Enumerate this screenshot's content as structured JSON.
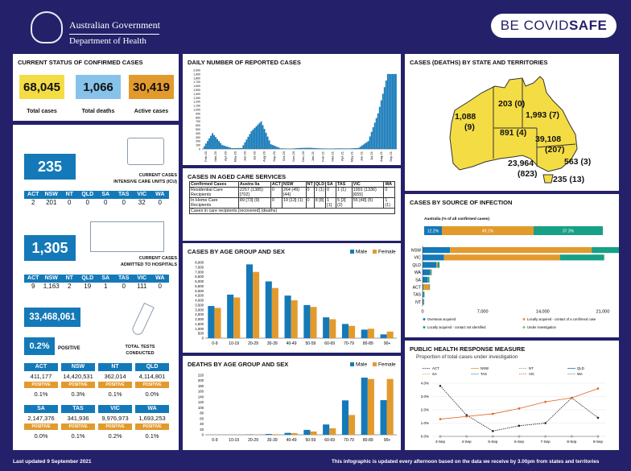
{
  "header": {
    "gov1": "Australian Government",
    "gov2": "Department of Health",
    "logo": "BE COVID",
    "logo_bold": "SAFE"
  },
  "status": {
    "title": "CURRENT STATUS OF CONFIRMED CASES",
    "total_cases": "68,045",
    "total_cases_label": "Total cases",
    "total_deaths": "1,066",
    "total_deaths_label": "Total deaths",
    "active_cases": "30,419",
    "active_cases_label": "Active cases"
  },
  "icu": {
    "value": "235",
    "label1": "CURRENT CASES",
    "label2": "INTENSIVE CARE UNITS (ICU)",
    "states": [
      "ACT",
      "NSW",
      "NT",
      "QLD",
      "SA",
      "TAS",
      "VIC",
      "WA"
    ],
    "values": [
      "2",
      "201",
      "0",
      "0",
      "0",
      "0",
      "32",
      "0"
    ]
  },
  "hospital": {
    "value": "1,305",
    "label1": "CURRENT CASES",
    "label2": "ADMITTED TO HOSPITALS",
    "states": [
      "ACT",
      "NSW",
      "NT",
      "QLD",
      "SA",
      "TAS",
      "VIC",
      "WA"
    ],
    "values": [
      "9",
      "1,163",
      "2",
      "19",
      "1",
      "0",
      "111",
      "0"
    ]
  },
  "tests": {
    "value": "33,468,061",
    "positive_pct": "0.2%",
    "positive_word": "POSITIVE",
    "label1": "TOTAL TESTS",
    "label2": "CONDUCTED",
    "rows": [
      {
        "states": [
          "ACT",
          "NSW",
          "NT",
          "QLD"
        ],
        "counts": [
          "411,177",
          "14,420,531",
          "362,014",
          "4,114,801"
        ],
        "pcts": [
          "0.1%",
          "0.3%",
          "0.1%",
          "0.0%"
        ]
      },
      {
        "states": [
          "SA",
          "TAS",
          "VIC",
          "WA"
        ],
        "counts": [
          "2,147,376",
          "341,936",
          "9,976,973",
          "1,693,253"
        ],
        "pcts": [
          "0.0%",
          "0.1%",
          "0.2%",
          "0.1%"
        ]
      }
    ],
    "pos_label": "POSITIVE"
  },
  "daily": {
    "title": "DAILY NUMBER OF REPORTED CASES",
    "yticks": [
      "0",
      "100",
      "200",
      "300",
      "400",
      "500",
      "600",
      "700",
      "800",
      "900",
      "1,000",
      "1,100",
      "1,200",
      "1,300",
      "1,400",
      "1,500",
      "1,600",
      "1,700",
      "1,800",
      "1,900",
      "2,000"
    ],
    "months": [
      "Feb-20",
      "Mar-20",
      "Apr-20",
      "May-20",
      "Jun-20",
      "Jul-20",
      "Aug-20",
      "Sep-20",
      "Oct-20",
      "Nov-20",
      "Dec-20",
      "Jan-21",
      "Feb-21",
      "Mar-21",
      "Apr-21",
      "May-21",
      "Jun-21",
      "Jul-21",
      "Aug-21",
      "Sep-21"
    ],
    "monthly_peak": [
      5,
      400,
      100,
      20,
      25,
      450,
      700,
      120,
      15,
      8,
      25,
      30,
      15,
      10,
      15,
      12,
      25,
      200,
      900,
      1900
    ]
  },
  "aged": {
    "title": "CASES IN AGED CARE SERVICES",
    "head": [
      "Confirmed Cases",
      "Austra lia",
      "ACT",
      "NSW",
      "NT",
      "QLD",
      "SA",
      "TAS",
      "VIC",
      "WA"
    ],
    "rows": [
      [
        "Residential Care Recipients",
        "2257 (1385) [702]",
        "0",
        "264 (49) [44]",
        "0",
        "1 (1)",
        "0",
        "1 (1)",
        "1991 (1336) [655]",
        "0"
      ],
      [
        "In Home Care Recipients",
        "89 [73] (9)",
        "0",
        "19 [13] (1)",
        "0",
        "8 [8]",
        "1 [1]",
        "5 [3] (2)",
        "55 [48] (5)",
        "1 (1)"
      ]
    ],
    "note": "Cases in care recipients [recovered] (deaths)"
  },
  "age_sex": {
    "title": "CASES BY AGE GROUP AND SEX",
    "legend_male": "Male",
    "legend_female": "Female",
    "yticks": [
      "0",
      "500",
      "1,000",
      "1,500",
      "2,000",
      "2,500",
      "3,000",
      "3,500",
      "4,000",
      "4,500",
      "5,000",
      "5,500",
      "6,000",
      "6,500",
      "7,000",
      "7,500",
      "8,000"
    ]
  },
  "deaths_age": {
    "title": "DEATHS BY AGE GROUP AND SEX",
    "legend_male": "Male",
    "legend_female": "Female",
    "yticks": [
      "0",
      "20",
      "40",
      "60",
      "80",
      "100",
      "120",
      "140",
      "160",
      "180",
      "200",
      "220"
    ]
  },
  "state_map": {
    "title": "CASES (DEATHS) BY STATE AND TERRITORIES",
    "labels": [
      {
        "a": "1,088",
        "b": "(9)"
      },
      {
        "a": "203 (0)",
        "b": ""
      },
      {
        "a": "1,993 (7)",
        "b": ""
      },
      {
        "a": "891 (4)",
        "b": ""
      },
      {
        "a": "39,108",
        "b": "(207)"
      },
      {
        "a": "563 (3)",
        "b": ""
      },
      {
        "a": "23,964",
        "b": "(823)"
      },
      {
        "a": "235 (13)",
        "b": ""
      }
    ]
  },
  "source": {
    "title": "CASES BY SOURCE OF INFECTION",
    "sub": "Australia (% of all confirmed cases)",
    "seg_labels": [
      "12.2%",
      "49.1%",
      "37.3%"
    ],
    "xticks": [
      "0",
      "7,000",
      "14,000",
      "21,000"
    ],
    "legend": [
      "Overseas acquired",
      "Locally acquired - contact of a confirmed case",
      "Locally acquired - contact not identified",
      "Under investigation"
    ]
  },
  "phr": {
    "title": "PUBLIC HEALTH RESPONSE MEASURE",
    "sub": "Proportion of total cases under investigation",
    "legend": [
      "ACT",
      "NSW",
      "NT",
      "QLD",
      "SA",
      "TAS",
      "VIC",
      "WA"
    ],
    "yticks": [
      "0.0%",
      "1.0%",
      "2.0%",
      "3.0%",
      "4.0%"
    ]
  },
  "footer": {
    "left": "Last updated 9 September 2021",
    "right": "This infographic is updated every afternoon based on the data we receive by 3.00pm from states and territories"
  },
  "chart_data": [
    {
      "type": "bar",
      "title": "CASES BY AGE GROUP AND SEX",
      "categories": [
        "0-9",
        "10-19",
        "20-29",
        "30-39",
        "40-49",
        "50-59",
        "60-69",
        "70-79",
        "80-89",
        "90+"
      ],
      "series": [
        {
          "name": "Male",
          "values": [
            3400,
            4600,
            7800,
            6000,
            4500,
            3500,
            2200,
            1500,
            900,
            400
          ]
        },
        {
          "name": "Female",
          "values": [
            3200,
            4300,
            7000,
            5300,
            4000,
            3300,
            2000,
            1300,
            1000,
            700
          ]
        }
      ],
      "ylim": [
        0,
        8000
      ],
      "legend": "top-right"
    },
    {
      "type": "bar",
      "title": "DEATHS BY AGE GROUP AND SEX",
      "categories": [
        "0-9",
        "10-19",
        "20-29",
        "30-39",
        "40-49",
        "50-59",
        "60-69",
        "70-79",
        "80-89",
        "90+"
      ],
      "series": [
        {
          "name": "Male",
          "values": [
            0,
            0,
            1,
            3,
            7,
            18,
            38,
            127,
            211,
            128
          ]
        },
        {
          "name": "Female",
          "values": [
            0,
            1,
            1,
            2,
            6,
            12,
            24,
            73,
            206,
            206
          ]
        }
      ],
      "ylim": [
        0,
        220
      ],
      "legend": "top-right"
    },
    {
      "type": "bar",
      "title": "CASES BY SOURCE OF INFECTION",
      "categories": [
        "NSW",
        "VIC",
        "QLD",
        "WA",
        "SA",
        "ACT",
        "TAS",
        "NT"
      ],
      "series": [
        {
          "name": "Overseas acquired",
          "values": [
            3200,
            2500,
            1600,
            900,
            600,
            100,
            150,
            120
          ]
        },
        {
          "name": "Locally acquired - contact of a confirmed case",
          "values": [
            16500,
            13500,
            150,
            80,
            50,
            700,
            20,
            40
          ]
        },
        {
          "name": "Locally acquired - contact not identified",
          "values": [
            11400,
            5100,
            230,
            90,
            150,
            60,
            60,
            40
          ]
        },
        {
          "name": "Under investigation",
          "values": [
            300,
            100,
            10,
            5,
            0,
            0,
            0,
            0
          ]
        }
      ],
      "xlim": [
        0,
        21000
      ]
    },
    {
      "type": "line",
      "title": "PUBLIC HEALTH RESPONSE MEASURE",
      "categories": [
        "3-Sep",
        "4-Sep",
        "5-Sep",
        "6-Sep",
        "7-Sep",
        "8-Sep",
        "9-Sep"
      ],
      "series": [
        {
          "name": "ACT",
          "values": [
            3.8,
            1.6,
            0.4,
            0.8,
            1.0,
            2.9,
            1.4
          ]
        },
        {
          "name": "NSW",
          "values": [
            0,
            0,
            0,
            0,
            0,
            0,
            0
          ]
        },
        {
          "name": "NT",
          "values": [
            0,
            0,
            0,
            0,
            0,
            0,
            0
          ]
        },
        {
          "name": "QLD",
          "values": [
            0,
            0,
            0,
            0,
            0,
            0,
            0
          ]
        },
        {
          "name": "SA",
          "values": [
            0,
            0,
            0,
            0,
            0,
            0,
            0
          ]
        },
        {
          "name": "TAS",
          "values": [
            0,
            0,
            0,
            0,
            0,
            0,
            0
          ]
        },
        {
          "name": "VIC",
          "values": [
            1.3,
            1.5,
            1.7,
            2.1,
            2.6,
            2.9,
            3.6
          ]
        },
        {
          "name": "WA",
          "values": [
            0,
            0,
            0,
            0,
            0,
            0,
            0
          ]
        }
      ],
      "ylim": [
        0,
        4
      ]
    }
  ],
  "colors": {
    "navy": "#24216a",
    "blue": "#1479b8",
    "yellow": "#f4dd44",
    "orange": "#e39a2d",
    "ltblue": "#86c2ea",
    "teal": "#16a085"
  }
}
